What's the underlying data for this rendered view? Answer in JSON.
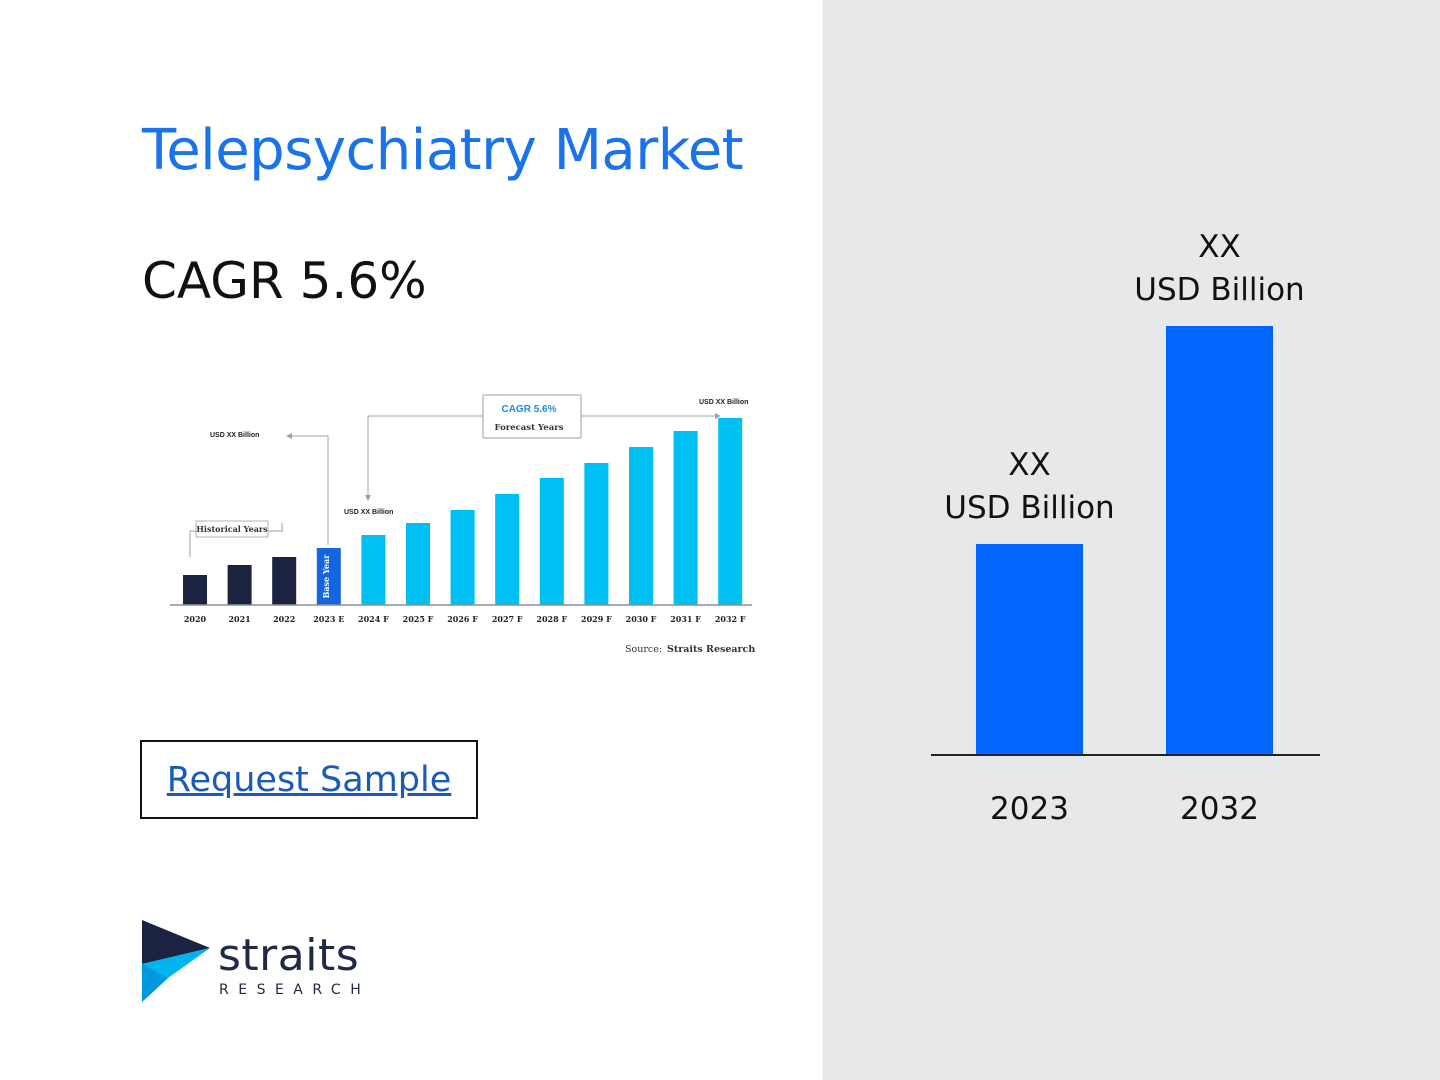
{
  "header": {
    "title": "Telepsychiatry Market",
    "cagr_label": "CAGR 5.6%"
  },
  "request_button": {
    "label": "Request Sample"
  },
  "logo": {
    "name": "straits",
    "subtitle": "RESEARCH"
  },
  "colors": {
    "accent": "#1a73e8",
    "main_bar": "#0066ff",
    "historical_bar": "#1b2340",
    "base_year_bar": "#1565e0",
    "forecast_bar": "#00bff3",
    "right_panel_bg": "#e7e8ea"
  },
  "chart_data": [
    {
      "type": "bar",
      "categories": [
        "2020",
        "2021",
        "2022",
        "2023 E",
        "2024 F",
        "2025 F",
        "2026 F",
        "2027 F",
        "2028 F",
        "2029 F",
        "2030 F",
        "2031 F",
        "2032 F"
      ],
      "values": [
        30,
        40,
        48,
        57,
        70,
        82,
        95,
        111,
        127,
        142,
        158,
        174,
        187
      ],
      "groups": [
        "historical",
        "historical",
        "historical",
        "base",
        "forecast",
        "forecast",
        "forecast",
        "forecast",
        "forecast",
        "forecast",
        "forecast",
        "forecast",
        "forecast"
      ],
      "ylim": [
        0,
        200
      ],
      "base_year_label": "Base Year",
      "annotations": {
        "historical": "Historical Years",
        "cagr": "CAGR 5.6%",
        "forecast": "Forecast Years",
        "value_start": "USD XX Billion",
        "value_base": "USD XX Billion",
        "value_end": "USD XX Billion"
      },
      "source_label": "Source:",
      "source": "Straits Research",
      "grid": false
    },
    {
      "type": "bar",
      "categories": [
        "2023",
        "2032"
      ],
      "values": [
        211,
        429
      ],
      "ylim": [
        0,
        500
      ],
      "data_labels": [
        {
          "value": "XX",
          "unit": "USD Billion"
        },
        {
          "value": "XX",
          "unit": "USD Billion"
        }
      ],
      "grid": false
    }
  ]
}
